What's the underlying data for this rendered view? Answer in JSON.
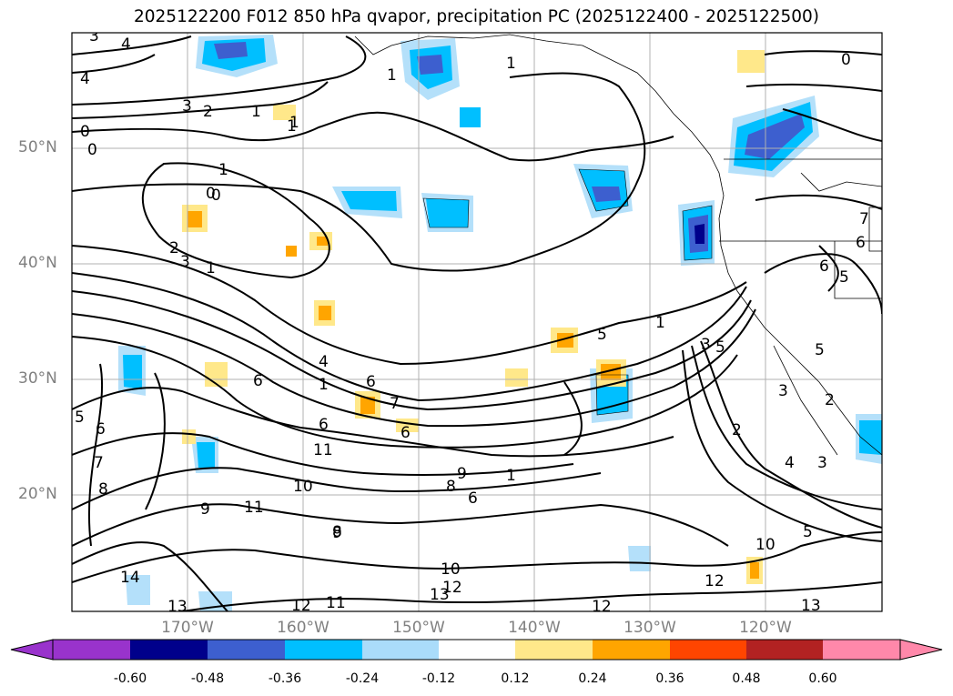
{
  "title": "2025122200 F012 850 hPa qvapor, precipitation PC (2025122400 - 2025122500)",
  "map": {
    "lat_labels": [
      "50°N",
      "40°N",
      "30°N",
      "20°N"
    ],
    "lon_labels": [
      "170°W",
      "160°W",
      "150°W",
      "140°W",
      "130°W",
      "120°W"
    ],
    "extent": {
      "lon_min": -180,
      "lon_max": -110,
      "lat_min": 10,
      "lat_max": 60
    },
    "contour_labels": [
      "3",
      "4",
      "4",
      "3",
      "2",
      "1",
      "1",
      "0",
      "1",
      "1",
      "0",
      "1",
      "0",
      "0",
      "0",
      "1",
      "2",
      "3",
      "1",
      "5",
      "5",
      "6",
      "4",
      "1",
      "6",
      "7",
      "6",
      "6",
      "11",
      "10",
      "9",
      "11",
      "9",
      "8",
      "6",
      "9",
      "8",
      "5",
      "6",
      "7",
      "8",
      "14",
      "13",
      "12",
      "11",
      "10",
      "12",
      "13",
      "12",
      "13",
      "10",
      "12",
      "5",
      "4",
      "3",
      "2",
      "3",
      "3",
      "6",
      "5",
      "6",
      "2",
      "1",
      "5",
      "7",
      "1"
    ],
    "precip_colors": {
      "neg_low": "#b4e0fa",
      "neg_mid": "#00bfff",
      "neg_high": "#3d5fcf",
      "neg_max": "#00008b",
      "pos_low": "#ffe88a",
      "pos_mid": "#ffa500"
    }
  },
  "colorbar": {
    "ticks": [
      "-0.60",
      "-0.48",
      "-0.36",
      "-0.24",
      "-0.12",
      "0.12",
      "0.24",
      "0.36",
      "0.48",
      "0.60"
    ],
    "colors": [
      "#9933cc",
      "#00008b",
      "#3d5fcf",
      "#00bfff",
      "#aadcfa",
      "#ffffff",
      "#ffe88a",
      "#ffa500",
      "#ff4500",
      "#b22222",
      "#ff88aa"
    ]
  }
}
